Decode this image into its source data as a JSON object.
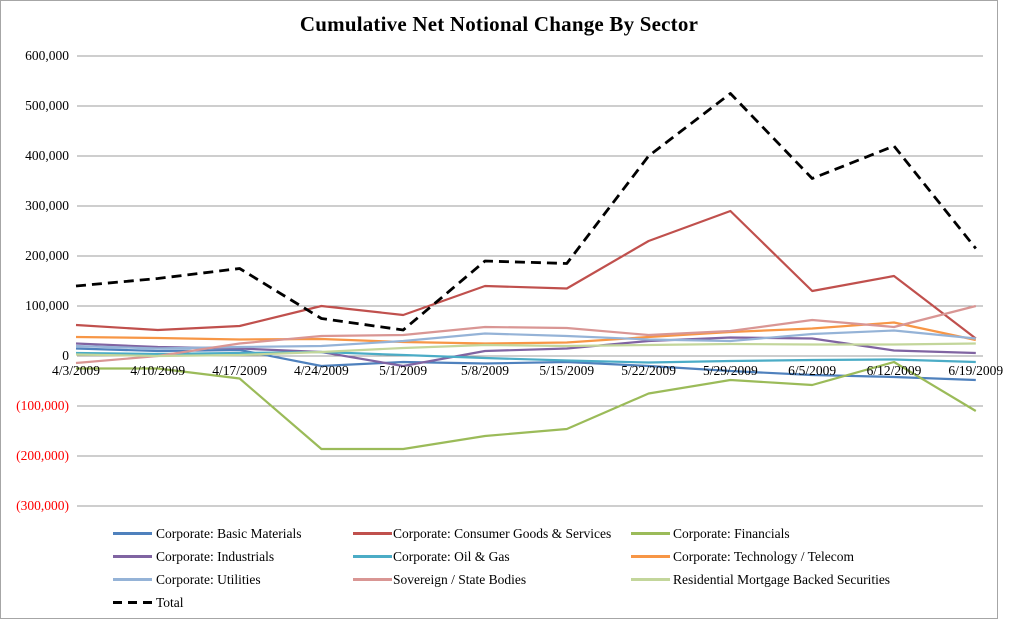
{
  "chart_data": {
    "type": "line",
    "title": "Cumulative Net Notional Change By Sector",
    "xlabel": "",
    "ylabel": "",
    "grid": true,
    "legend_position": "bottom",
    "y_axis": {
      "min": -300000,
      "max": 600000,
      "step": 100000,
      "tick_labels": [
        "600,000",
        "500,000",
        "400,000",
        "300,000",
        "200,000",
        "100,000",
        "0",
        "(100,000)",
        "(200,000)",
        "(300,000)"
      ],
      "negative_label_color": "#ff0000"
    },
    "categories": [
      "4/3/2009",
      "4/10/2009",
      "4/17/2009",
      "4/24/2009",
      "5/1/2009",
      "5/8/2009",
      "5/15/2009",
      "5/22/2009",
      "5/29/2009",
      "6/5/2009",
      "6/12/2009",
      "6/19/2009"
    ],
    "series": [
      {
        "name": "Corporate: Basic Materials",
        "color": "#4F81BD",
        "style": "solid",
        "values": [
          15000,
          10000,
          12000,
          -20000,
          -12000,
          -15000,
          -12000,
          -20000,
          -30000,
          -38000,
          -42000,
          -48000
        ]
      },
      {
        "name": "Corporate: Consumer Goods & Services",
        "color": "#C0504D",
        "style": "solid",
        "values": [
          62000,
          52000,
          60000,
          100000,
          82000,
          140000,
          135000,
          230000,
          290000,
          130000,
          160000,
          35000
        ]
      },
      {
        "name": "Corporate: Financials",
        "color": "#9BBB59",
        "style": "solid",
        "values": [
          -25000,
          -25000,
          -45000,
          -186000,
          -186000,
          -160000,
          -146000,
          -75000,
          -48000,
          -58000,
          -12000,
          -110000
        ]
      },
      {
        "name": "Corporate: Industrials",
        "color": "#8064A2",
        "style": "solid",
        "values": [
          25000,
          18000,
          15000,
          8000,
          -20000,
          10000,
          15000,
          30000,
          37000,
          35000,
          11000,
          6000
        ]
      },
      {
        "name": "Corporate: Oil & Gas",
        "color": "#4BACC6",
        "style": "solid",
        "values": [
          6000,
          4000,
          6000,
          8000,
          2000,
          -4000,
          -9000,
          -13000,
          -10000,
          -8000,
          -7000,
          -12000
        ]
      },
      {
        "name": "Corporate: Technology / Telecom",
        "color": "#F79646",
        "style": "solid",
        "values": [
          38000,
          36000,
          33000,
          34000,
          28000,
          25000,
          27000,
          38000,
          48000,
          55000,
          67000,
          32000
        ]
      },
      {
        "name": "Corporate: Utilities",
        "color": "#95B3D7",
        "style": "solid",
        "values": [
          20000,
          15000,
          18000,
          20000,
          30000,
          45000,
          40000,
          33000,
          30000,
          44000,
          51000,
          35000
        ]
      },
      {
        "name": "Sovereign / State Bodies",
        "color": "#D99694",
        "style": "solid",
        "values": [
          -14000,
          0,
          25000,
          40000,
          42000,
          58000,
          56000,
          42000,
          50000,
          72000,
          58000,
          100000
        ]
      },
      {
        "name": "Residential Mortgage Backed Securities",
        "color": "#C3D69B",
        "style": "solid",
        "values": [
          3000,
          0,
          2000,
          8000,
          16000,
          22000,
          20000,
          22000,
          24000,
          23000,
          23000,
          25000
        ]
      },
      {
        "name": "Total",
        "color": "#000000",
        "style": "dashed",
        "values": [
          140000,
          155000,
          175000,
          75000,
          52000,
          190000,
          185000,
          400000,
          525000,
          355000,
          420000,
          215000
        ]
      }
    ]
  }
}
